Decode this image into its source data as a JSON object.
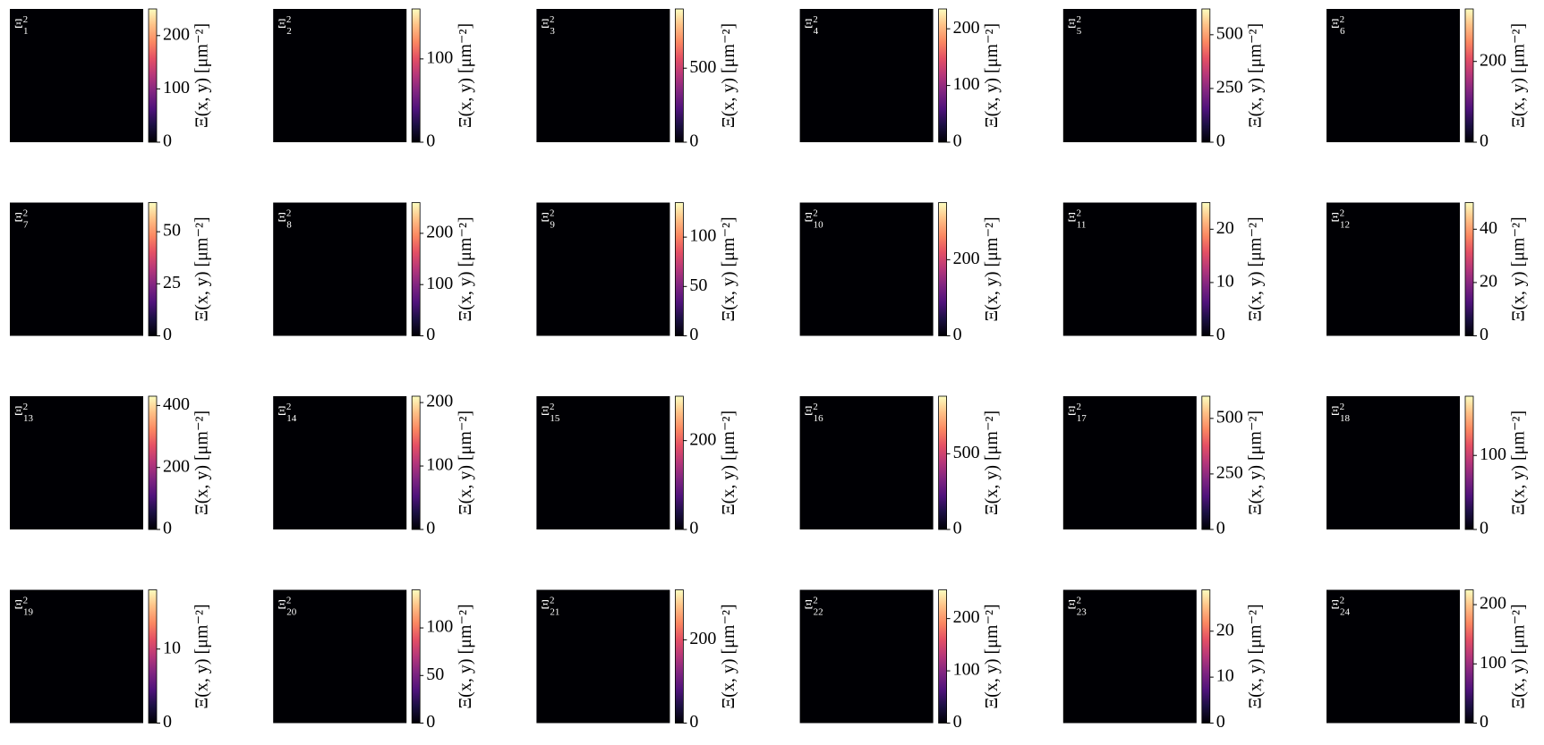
{
  "chart_data": [
    {
      "type": "heatmap",
      "label": {
        "base": "Ξ",
        "sup": "2",
        "sub": "1"
      },
      "colorbar_label": "Ξ(x, y) [μm⁻²]",
      "colormap": "magma",
      "clim": [
        0,
        250
      ],
      "cticks": [
        0,
        100,
        200
      ]
    },
    {
      "type": "heatmap",
      "label": {
        "base": "Ξ",
        "sup": "2",
        "sub": "2"
      },
      "colorbar_label": "Ξ(x, y) [μm⁻²]",
      "colormap": "magma",
      "clim": [
        0,
        160
      ],
      "cticks": [
        0,
        100
      ]
    },
    {
      "type": "heatmap",
      "label": {
        "base": "Ξ",
        "sup": "2",
        "sub": "3"
      },
      "colorbar_label": "Ξ(x, y) [μm⁻²]",
      "colormap": "magma",
      "clim": [
        0,
        900
      ],
      "cticks": [
        0,
        500
      ]
    },
    {
      "type": "heatmap",
      "label": {
        "base": "Ξ",
        "sup": "2",
        "sub": "4"
      },
      "colorbar_label": "Ξ(x, y) [μm⁻²]",
      "colormap": "magma",
      "clim": [
        0,
        235
      ],
      "cticks": [
        0,
        100,
        200
      ]
    },
    {
      "type": "heatmap",
      "label": {
        "base": "Ξ",
        "sup": "2",
        "sub": "5"
      },
      "colorbar_label": "Ξ(x, y) [μm⁻²]",
      "colormap": "magma",
      "clim": [
        0,
        620
      ],
      "cticks": [
        0,
        250,
        500
      ]
    },
    {
      "type": "heatmap",
      "label": {
        "base": "Ξ",
        "sup": "2",
        "sub": "6"
      },
      "colorbar_label": "Ξ(x, y) [μm⁻²]",
      "colormap": "magma",
      "clim": [
        0,
        330
      ],
      "cticks": [
        0,
        200
      ]
    },
    {
      "type": "heatmap",
      "label": {
        "base": "Ξ",
        "sup": "2",
        "sub": "7"
      },
      "colorbar_label": "Ξ(x, y) [μm⁻²]",
      "colormap": "magma",
      "clim": [
        0,
        64
      ],
      "cticks": [
        0,
        25,
        50
      ]
    },
    {
      "type": "heatmap",
      "label": {
        "base": "Ξ",
        "sup": "2",
        "sub": "8"
      },
      "colorbar_label": "Ξ(x, y) [μm⁻²]",
      "colormap": "magma",
      "clim": [
        0,
        260
      ],
      "cticks": [
        0,
        100,
        200
      ]
    },
    {
      "type": "heatmap",
      "label": {
        "base": "Ξ",
        "sup": "2",
        "sub": "9"
      },
      "colorbar_label": "Ξ(x, y) [μm⁻²]",
      "colormap": "magma",
      "clim": [
        0,
        135
      ],
      "cticks": [
        0,
        50,
        100
      ]
    },
    {
      "type": "heatmap",
      "label": {
        "base": "Ξ",
        "sup": "2",
        "sub": "10"
      },
      "colorbar_label": "Ξ(x, y) [μm⁻²]",
      "colormap": "magma",
      "clim": [
        0,
        350
      ],
      "cticks": [
        0,
        200
      ]
    },
    {
      "type": "heatmap",
      "label": {
        "base": "Ξ",
        "sup": "2",
        "sub": "11"
      },
      "colorbar_label": "Ξ(x, y) [μm⁻²]",
      "colormap": "magma",
      "clim": [
        0,
        25
      ],
      "cticks": [
        0,
        10,
        20
      ]
    },
    {
      "type": "heatmap",
      "label": {
        "base": "Ξ",
        "sup": "2",
        "sub": "12"
      },
      "colorbar_label": "Ξ(x, y) [μm⁻²]",
      "colormap": "magma",
      "clim": [
        0,
        50
      ],
      "cticks": [
        0,
        20,
        40
      ]
    },
    {
      "type": "heatmap",
      "label": {
        "base": "Ξ",
        "sup": "2",
        "sub": "13"
      },
      "colorbar_label": "Ξ(x, y) [μm⁻²]",
      "colormap": "magma",
      "clim": [
        0,
        430
      ],
      "cticks": [
        0,
        200,
        400
      ]
    },
    {
      "type": "heatmap",
      "label": {
        "base": "Ξ",
        "sup": "2",
        "sub": "14"
      },
      "colorbar_label": "Ξ(x, y) [μm⁻²]",
      "colormap": "magma",
      "clim": [
        0,
        210
      ],
      "cticks": [
        0,
        100,
        200
      ]
    },
    {
      "type": "heatmap",
      "label": {
        "base": "Ξ",
        "sup": "2",
        "sub": "15"
      },
      "colorbar_label": "Ξ(x, y) [μm⁻²]",
      "colormap": "magma",
      "clim": [
        0,
        300
      ],
      "cticks": [
        0,
        200
      ]
    },
    {
      "type": "heatmap",
      "label": {
        "base": "Ξ",
        "sup": "2",
        "sub": "16"
      },
      "colorbar_label": "Ξ(x, y) [μm⁻²]",
      "colormap": "magma",
      "clim": [
        0,
        880
      ],
      "cticks": [
        0,
        500
      ]
    },
    {
      "type": "heatmap",
      "label": {
        "base": "Ξ",
        "sup": "2",
        "sub": "17"
      },
      "colorbar_label": "Ξ(x, y) [μm⁻²]",
      "colormap": "magma",
      "clim": [
        0,
        600
      ],
      "cticks": [
        0,
        250,
        500
      ]
    },
    {
      "type": "heatmap",
      "label": {
        "base": "Ξ",
        "sup": "2",
        "sub": "18"
      },
      "colorbar_label": "Ξ(x, y) [μm⁻²]",
      "colormap": "magma",
      "clim": [
        0,
        180
      ],
      "cticks": [
        0,
        100
      ]
    },
    {
      "type": "heatmap",
      "label": {
        "base": "Ξ",
        "sup": "2",
        "sub": "19"
      },
      "colorbar_label": "Ξ(x, y) [μm⁻²]",
      "colormap": "magma",
      "clim": [
        0,
        18
      ],
      "cticks": [
        0,
        10
      ]
    },
    {
      "type": "heatmap",
      "label": {
        "base": "Ξ",
        "sup": "2",
        "sub": "20"
      },
      "colorbar_label": "Ξ(x, y) [μm⁻²]",
      "colormap": "magma",
      "clim": [
        0,
        140
      ],
      "cticks": [
        0,
        50,
        100
      ]
    },
    {
      "type": "heatmap",
      "label": {
        "base": "Ξ",
        "sup": "2",
        "sub": "21"
      },
      "colorbar_label": "Ξ(x, y) [μm⁻²]",
      "colormap": "magma",
      "clim": [
        0,
        320
      ],
      "cticks": [
        0,
        200
      ]
    },
    {
      "type": "heatmap",
      "label": {
        "base": "Ξ",
        "sup": "2",
        "sub": "22"
      },
      "colorbar_label": "Ξ(x, y) [μm⁻²]",
      "colormap": "magma",
      "clim": [
        0,
        255
      ],
      "cticks": [
        0,
        100,
        200
      ]
    },
    {
      "type": "heatmap",
      "label": {
        "base": "Ξ",
        "sup": "2",
        "sub": "23"
      },
      "colorbar_label": "Ξ(x, y) [μm⁻²]",
      "colormap": "magma",
      "clim": [
        0,
        29
      ],
      "cticks": [
        0,
        10,
        20
      ]
    },
    {
      "type": "heatmap",
      "label": {
        "base": "Ξ",
        "sup": "2",
        "sub": "24"
      },
      "colorbar_label": "Ξ(x, y) [μm⁻²]",
      "colormap": "magma",
      "clim": [
        0,
        225
      ],
      "cticks": [
        0,
        100,
        200
      ]
    }
  ]
}
